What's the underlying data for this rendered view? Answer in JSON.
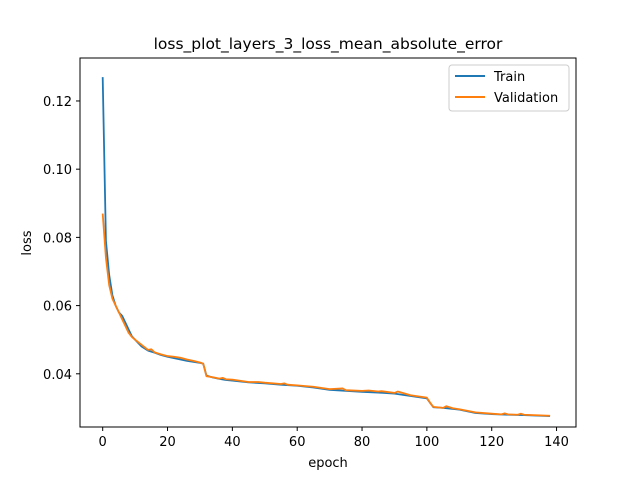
{
  "chart_data": {
    "type": "line",
    "title": "loss_plot_layers_3_loss_mean_absolute_error",
    "xlabel": "epoch",
    "ylabel": "loss",
    "xlim": [
      -7,
      146
    ],
    "ylim": [
      0.0244,
      0.1326
    ],
    "xticks": [
      0,
      20,
      40,
      60,
      80,
      100,
      120,
      140
    ],
    "yticks": [
      0.04,
      0.06,
      0.08,
      0.1,
      0.12
    ],
    "ytick_labels": [
      "0.04",
      "0.06",
      "0.08",
      "0.10",
      "0.12"
    ],
    "legend_position": "top-right",
    "grid": false,
    "series": [
      {
        "name": "Train",
        "color": "#1f77b4",
        "x": [
          0,
          1,
          2,
          3,
          4,
          5,
          6,
          7,
          8,
          9,
          10,
          12,
          14,
          16,
          18,
          20,
          22,
          24,
          26,
          28,
          30,
          31,
          32,
          34,
          36,
          38,
          40,
          45,
          50,
          55,
          60,
          65,
          70,
          75,
          80,
          85,
          90,
          95,
          100,
          101,
          102,
          105,
          110,
          115,
          120,
          125,
          130,
          135,
          138
        ],
        "y": [
          0.127,
          0.079,
          0.069,
          0.063,
          0.06,
          0.058,
          0.057,
          0.055,
          0.053,
          0.051,
          0.05,
          0.048,
          0.0468,
          0.0462,
          0.0455,
          0.045,
          0.0446,
          0.0442,
          0.0438,
          0.0435,
          0.0432,
          0.043,
          0.0395,
          0.0389,
          0.0385,
          0.0382,
          0.038,
          0.0375,
          0.0372,
          0.0368,
          0.0365,
          0.036,
          0.0353,
          0.035,
          0.0347,
          0.0345,
          0.0342,
          0.0335,
          0.0328,
          0.0315,
          0.0302,
          0.03,
          0.0295,
          0.0285,
          0.0282,
          0.028,
          0.0279,
          0.0277,
          0.0276
        ]
      },
      {
        "name": "Validation",
        "color": "#ff7f0e",
        "x": [
          0,
          1,
          2,
          3,
          4,
          5,
          6,
          7,
          8,
          9,
          10,
          12,
          14,
          15,
          16,
          18,
          20,
          22,
          24,
          26,
          28,
          30,
          31,
          32,
          34,
          36,
          37,
          38,
          40,
          45,
          48,
          50,
          55,
          56,
          57,
          60,
          65,
          70,
          74,
          75,
          80,
          82,
          85,
          86,
          90,
          91,
          95,
          100,
          101,
          102,
          105,
          106,
          108,
          110,
          115,
          120,
          123,
          124,
          125,
          128,
          129,
          130,
          135,
          138
        ],
        "y": [
          0.087,
          0.074,
          0.066,
          0.062,
          0.06,
          0.058,
          0.056,
          0.054,
          0.052,
          0.0508,
          0.05,
          0.0485,
          0.047,
          0.0472,
          0.0463,
          0.0457,
          0.0452,
          0.045,
          0.0447,
          0.0442,
          0.0438,
          0.0433,
          0.043,
          0.0393,
          0.039,
          0.0386,
          0.0388,
          0.0384,
          0.0383,
          0.0376,
          0.0376,
          0.0374,
          0.037,
          0.0372,
          0.0368,
          0.0366,
          0.0362,
          0.0355,
          0.0357,
          0.0352,
          0.035,
          0.0351,
          0.0348,
          0.0349,
          0.0344,
          0.0348,
          0.0337,
          0.033,
          0.0315,
          0.0303,
          0.03,
          0.0305,
          0.0299,
          0.0296,
          0.0287,
          0.0283,
          0.0281,
          0.0284,
          0.0281,
          0.028,
          0.0283,
          0.028,
          0.0278,
          0.0277
        ]
      }
    ]
  }
}
